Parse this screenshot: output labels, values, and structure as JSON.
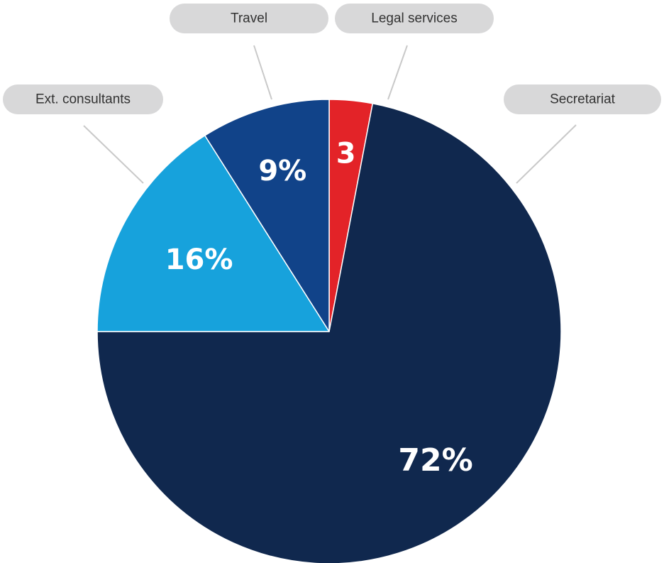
{
  "chart_data": {
    "type": "pie",
    "slices": [
      {
        "label": "Secretariat",
        "value": 72,
        "value_label": "72%",
        "color": "#10284e"
      },
      {
        "label": "Ext. consultants",
        "value": 16,
        "value_label": "16%",
        "color": "#17a2dc"
      },
      {
        "label": "Travel",
        "value": 9,
        "value_label": "9%",
        "color": "#114389"
      },
      {
        "label": "Legal services",
        "value": 3,
        "value_label": "3",
        "color": "#e32328"
      }
    ],
    "start": "12 o'clock",
    "direction": "clockwise",
    "slice_order": [
      "Legal services",
      "Secretariat",
      "Ext. consultants",
      "Travel"
    ],
    "legend": "callout labels"
  },
  "colors": {
    "label_pill": "#d8d8d9",
    "leader_line": "#c9c9c9",
    "label_text": "#333333",
    "value_text": "#ffffff",
    "slice_border": "#ffffff"
  }
}
